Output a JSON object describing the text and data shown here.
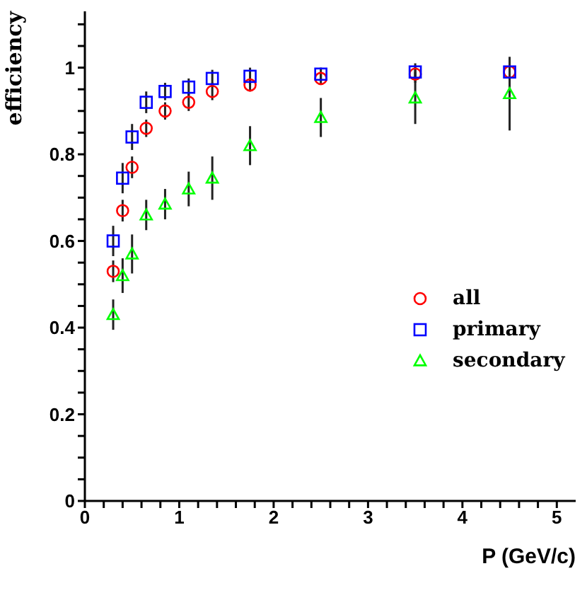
{
  "chart_data": {
    "type": "scatter",
    "xlabel": "P (GeV/c)",
    "ylabel": "efficiency",
    "x": [
      0.3,
      0.4,
      0.5,
      0.65,
      0.85,
      1.1,
      1.35,
      1.75,
      2.5,
      3.5,
      4.5
    ],
    "series": [
      {
        "name": "all",
        "color": "#ff0000",
        "marker": "circle",
        "values": [
          0.53,
          0.67,
          0.77,
          0.86,
          0.9,
          0.92,
          0.945,
          0.96,
          0.975,
          0.985,
          0.99
        ],
        "errors": [
          0.025,
          0.025,
          0.025,
          0.02,
          0.02,
          0.02,
          0.02,
          0.015,
          0.015,
          0.02,
          null
        ]
      },
      {
        "name": "primary",
        "color": "#0000ff",
        "marker": "square",
        "values": [
          0.6,
          0.745,
          0.84,
          0.92,
          0.945,
          0.955,
          0.975,
          0.98,
          0.985,
          0.99,
          0.99
        ],
        "errors": [
          0.035,
          0.035,
          0.03,
          0.025,
          0.02,
          0.02,
          0.02,
          0.02,
          0.015,
          0.02,
          null
        ]
      },
      {
        "name": "secondary",
        "color": "#00ff00",
        "marker": "triangle",
        "values": [
          0.43,
          0.52,
          0.57,
          0.66,
          0.685,
          0.72,
          0.745,
          0.82,
          0.885,
          0.93,
          0.94
        ],
        "errors": [
          0.035,
          0.04,
          0.045,
          0.035,
          0.035,
          0.04,
          0.05,
          0.045,
          0.045,
          0.06,
          0.085
        ]
      }
    ],
    "xlim": [
      0,
      5.2
    ],
    "xticks": [
      0,
      {
        "value": 0.2,
        "label": null
      },
      {
        "value": 0.4,
        "label": null
      },
      {
        "value": 0.6,
        "label": null
      },
      {
        "value": 0.8,
        "label": null
      },
      1,
      {
        "value": 1.2,
        "label": null
      },
      {
        "value": 1.4,
        "label": null
      },
      {
        "value": 1.6,
        "label": null
      },
      {
        "value": 1.8,
        "label": null
      },
      2,
      {
        "value": 2.2,
        "label": null
      },
      {
        "value": 2.4,
        "label": null
      },
      {
        "value": 2.6,
        "label": null
      },
      {
        "value": 2.8,
        "label": null
      },
      3,
      {
        "value": 3.2,
        "label": null
      },
      {
        "value": 3.4,
        "label": null
      },
      {
        "value": 3.6,
        "label": null
      },
      {
        "value": 3.8,
        "label": null
      },
      4,
      {
        "value": 4.2,
        "label": null
      },
      {
        "value": 4.4,
        "label": null
      },
      {
        "value": 4.6,
        "label": null
      },
      {
        "value": 4.8,
        "label": null
      },
      5
    ],
    "ylim": [
      0,
      1.13
    ],
    "yticks": [
      0,
      {
        "value": 0.05,
        "label": null
      },
      {
        "value": 0.1,
        "label": null
      },
      {
        "value": 0.15,
        "label": null
      },
      0.2,
      {
        "value": 0.25,
        "label": null
      },
      {
        "value": 0.3,
        "label": null
      },
      {
        "value": 0.35,
        "label": null
      },
      0.4,
      {
        "value": 0.45,
        "label": null
      },
      {
        "value": 0.5,
        "label": null
      },
      {
        "value": 0.55,
        "label": null
      },
      0.6,
      {
        "value": 0.65,
        "label": null
      },
      {
        "value": 0.7,
        "label": null
      },
      {
        "value": 0.75,
        "label": null
      },
      0.8,
      {
        "value": 0.85,
        "label": null
      },
      {
        "value": 0.9,
        "label": null
      },
      {
        "value": 0.95,
        "label": null
      },
      1,
      {
        "value": 1.05,
        "label": null
      },
      {
        "value": 1.1,
        "label": null
      }
    ],
    "grid": false,
    "legend": "right"
  }
}
